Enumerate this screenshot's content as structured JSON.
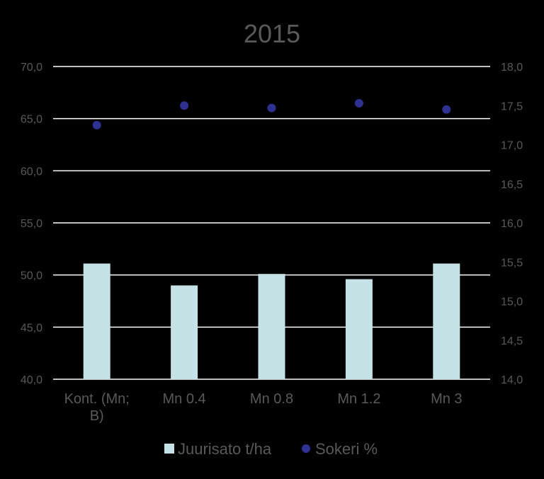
{
  "chart_data": {
    "type": "bar",
    "title": "2015",
    "categories": [
      "Kont. (Mn; B)",
      "Mn 0.4",
      "Mn 0.8",
      "Mn 1.2",
      "Mn 3"
    ],
    "category_lines": [
      [
        "Kont. (Mn;",
        "B)"
      ],
      [
        "Mn 0.4"
      ],
      [
        "Mn 0.8"
      ],
      [
        "Mn 1.2"
      ],
      [
        "Mn 3"
      ]
    ],
    "series": [
      {
        "name": "Juurisato t/ha",
        "type": "bar",
        "axis": "left",
        "color": "#C5E3E6",
        "values": [
          51.1,
          49.0,
          50.1,
          49.6,
          51.1
        ]
      },
      {
        "name": "Sokeri %",
        "type": "scatter",
        "axis": "right",
        "color": "#2E3192",
        "values": [
          17.25,
          17.5,
          17.47,
          17.53,
          17.45
        ]
      }
    ],
    "y_left": {
      "lim": [
        40,
        70
      ],
      "ticks": [
        "40,0",
        "45,0",
        "50,0",
        "55,0",
        "60,0",
        "65,0",
        "70,0"
      ]
    },
    "y_right": {
      "lim": [
        14,
        18
      ],
      "ticks": [
        "14,0",
        "14,5",
        "15,0",
        "15,5",
        "16,0",
        "16,5",
        "17,0",
        "17,5",
        "18,0"
      ]
    },
    "grid": true,
    "legend_position": "bottom",
    "colors": {
      "background": "#000000",
      "text": "#595959",
      "grid": "#FFFFFF"
    }
  }
}
